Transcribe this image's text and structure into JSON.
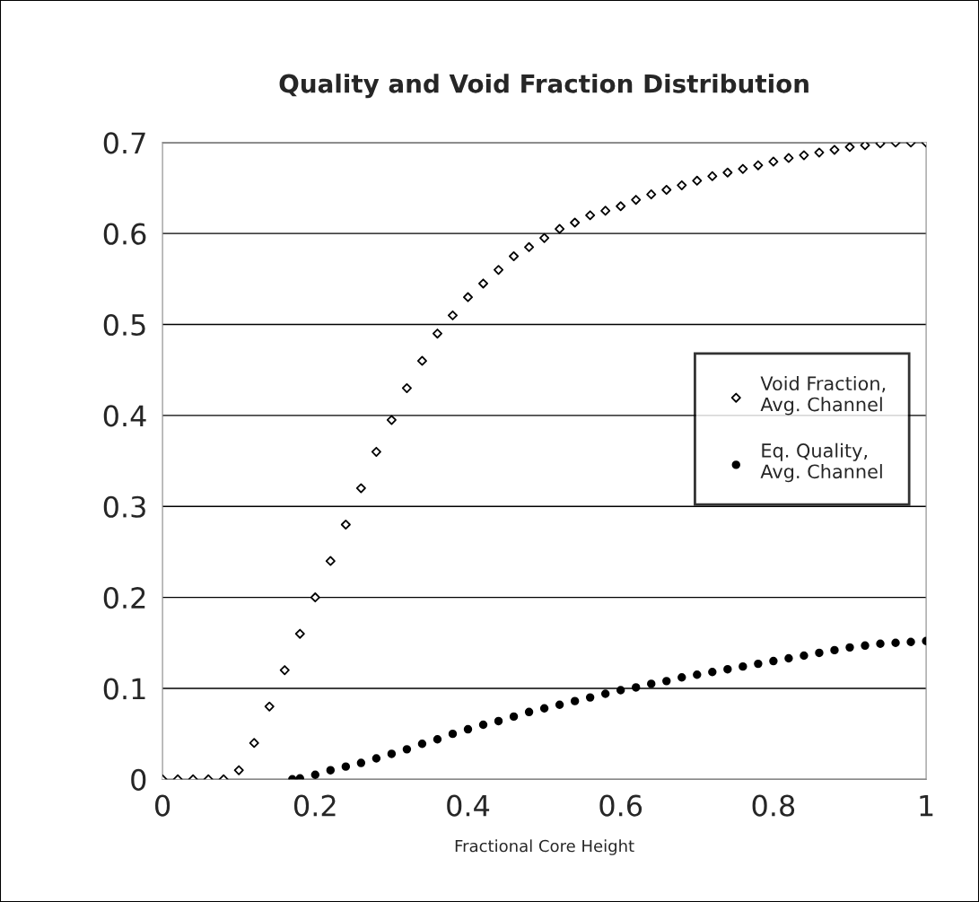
{
  "chart_data": {
    "type": "scatter",
    "title": "Quality and Void Fraction Distribution",
    "xlabel": "Fractional Core Height",
    "xlim": [
      0,
      1
    ],
    "xticks": [
      0,
      0.2,
      0.4,
      0.6,
      0.8,
      1
    ],
    "ylim": [
      0,
      0.7
    ],
    "yticks": [
      0,
      0.1,
      0.2,
      0.3,
      0.4,
      0.5,
      0.6,
      0.7
    ],
    "grid": "y",
    "legend": "right",
    "series": [
      {
        "name": "Void Fraction, Avg. Channel",
        "color": "#000000",
        "marker": "diamond",
        "x": [
          0,
          0.02,
          0.04,
          0.06,
          0.08,
          0.1,
          0.12,
          0.14,
          0.16,
          0.18,
          0.2,
          0.22,
          0.24,
          0.26,
          0.28,
          0.3,
          0.32,
          0.34,
          0.36,
          0.38,
          0.4,
          0.42,
          0.44,
          0.46,
          0.48,
          0.5,
          0.52,
          0.54,
          0.56,
          0.58,
          0.6,
          0.62,
          0.64,
          0.66,
          0.68,
          0.7,
          0.72,
          0.74,
          0.76,
          0.78,
          0.8,
          0.82,
          0.84,
          0.86,
          0.88,
          0.9,
          0.92,
          0.94,
          0.96,
          0.98,
          1.0
        ],
        "values": [
          0,
          0,
          0,
          0,
          0,
          0.01,
          0.04,
          0.08,
          0.12,
          0.16,
          0.2,
          0.24,
          0.28,
          0.32,
          0.36,
          0.395,
          0.43,
          0.46,
          0.49,
          0.51,
          0.53,
          0.545,
          0.56,
          0.575,
          0.585,
          0.595,
          0.605,
          0.612,
          0.62,
          0.625,
          0.63,
          0.637,
          0.643,
          0.648,
          0.653,
          0.658,
          0.663,
          0.667,
          0.671,
          0.675,
          0.679,
          0.683,
          0.686,
          0.689,
          0.692,
          0.695,
          0.697,
          0.699,
          0.7,
          0.7,
          0.7
        ]
      },
      {
        "name": "Eq. Quality, Avg. Channel",
        "color": "#000000",
        "marker": "circle",
        "x": [
          0.17,
          0.18,
          0.2,
          0.22,
          0.24,
          0.26,
          0.28,
          0.3,
          0.32,
          0.34,
          0.36,
          0.38,
          0.4,
          0.42,
          0.44,
          0.46,
          0.48,
          0.5,
          0.52,
          0.54,
          0.56,
          0.58,
          0.6,
          0.62,
          0.64,
          0.66,
          0.68,
          0.7,
          0.72,
          0.74,
          0.76,
          0.78,
          0.8,
          0.82,
          0.84,
          0.86,
          0.88,
          0.9,
          0.92,
          0.94,
          0.96,
          0.98,
          1.0
        ],
        "values": [
          0,
          0.001,
          0.005,
          0.01,
          0.014,
          0.018,
          0.023,
          0.028,
          0.033,
          0.039,
          0.044,
          0.05,
          0.055,
          0.06,
          0.064,
          0.069,
          0.074,
          0.078,
          0.082,
          0.086,
          0.09,
          0.094,
          0.098,
          0.101,
          0.105,
          0.108,
          0.112,
          0.115,
          0.118,
          0.121,
          0.124,
          0.127,
          0.13,
          0.133,
          0.136,
          0.139,
          0.142,
          0.145,
          0.147,
          0.149,
          0.15,
          0.151,
          0.152
        ]
      }
    ]
  }
}
